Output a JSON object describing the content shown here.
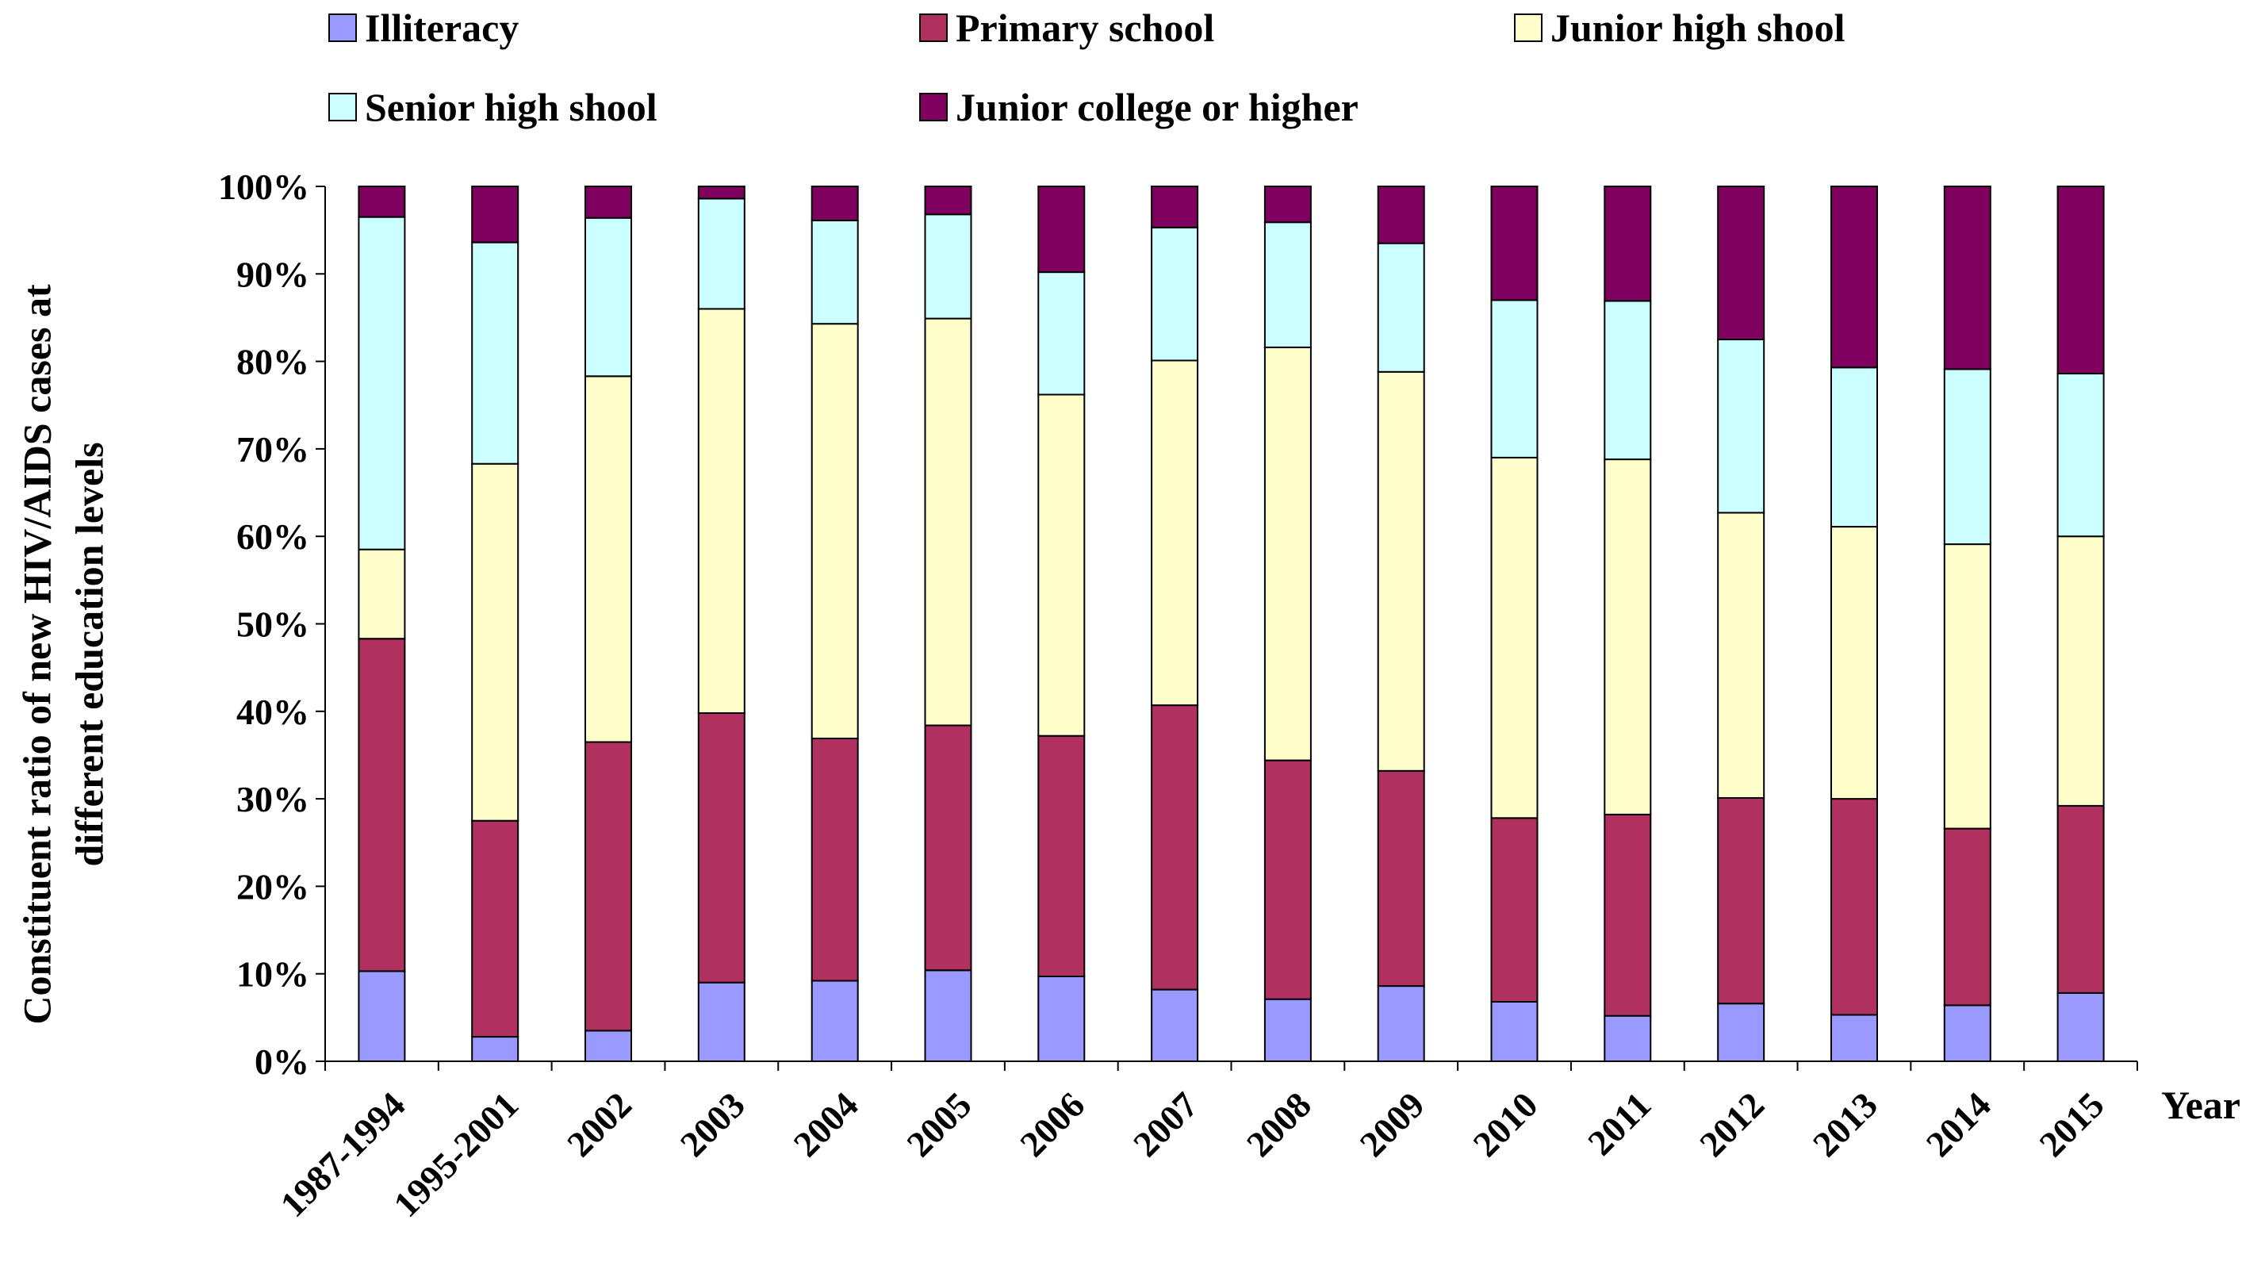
{
  "chart_data": {
    "type": "bar",
    "stacked": true,
    "normalized_percent": true,
    "xlabel": "Year",
    "ylabel_lines": [
      "Constituent ratio of new HIV/AIDS cases at",
      "different education levels"
    ],
    "ylim": [
      0,
      100
    ],
    "y_ticks": [
      0,
      10,
      20,
      30,
      40,
      50,
      60,
      70,
      80,
      90,
      100
    ],
    "y_tick_labels": [
      "0%",
      "10%",
      "20%",
      "30%",
      "40%",
      "50%",
      "60%",
      "70%",
      "80%",
      "90%",
      "100%"
    ],
    "grid": false,
    "legend_position": "top",
    "categories": [
      "1987-1994",
      "1995-2001",
      "2002",
      "2003",
      "2004",
      "2005",
      "2006",
      "2007",
      "2008",
      "2009",
      "2010",
      "2011",
      "2012",
      "2013",
      "2014",
      "2015"
    ],
    "series": [
      {
        "name": "Illiteracy",
        "color": "#9999ff",
        "values": [
          10.3,
          2.8,
          3.5,
          9.0,
          9.2,
          10.4,
          9.7,
          8.2,
          7.1,
          8.6,
          6.8,
          5.2,
          6.6,
          5.3,
          6.4,
          7.8
        ]
      },
      {
        "name": "Primary school",
        "color": "#b03060",
        "values": [
          38.0,
          24.7,
          33.0,
          30.8,
          27.7,
          28.0,
          27.5,
          32.5,
          27.3,
          24.6,
          21.0,
          23.0,
          23.5,
          24.7,
          20.2,
          21.4
        ]
      },
      {
        "name": "Junior high shool",
        "color": "#ffffcc",
        "values": [
          10.2,
          40.8,
          41.8,
          46.2,
          47.4,
          46.5,
          39.0,
          39.4,
          47.2,
          45.6,
          41.2,
          40.6,
          32.6,
          31.1,
          32.5,
          30.8
        ]
      },
      {
        "name": "Senior high shool",
        "color": "#ccffff",
        "values": [
          38.0,
          25.3,
          18.1,
          12.6,
          11.8,
          11.9,
          14.0,
          15.2,
          14.3,
          14.7,
          18.0,
          18.1,
          19.8,
          18.2,
          20.0,
          18.6
        ]
      },
      {
        "name": "Junior college or higher",
        "color": "#800060",
        "values": [
          3.5,
          6.4,
          3.6,
          1.4,
          3.9,
          3.2,
          9.8,
          4.7,
          4.1,
          6.5,
          13.0,
          13.1,
          17.5,
          20.7,
          20.9,
          21.4
        ]
      }
    ]
  }
}
